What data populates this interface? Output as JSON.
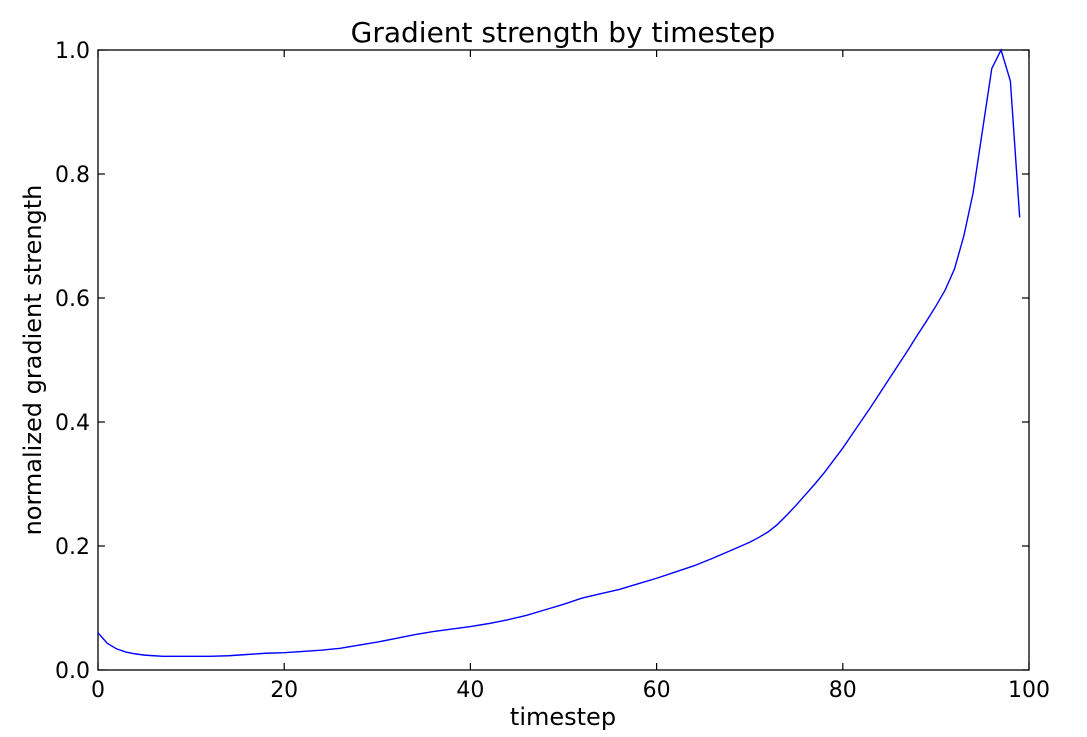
{
  "chart_data": {
    "type": "line",
    "title": "Gradient strength by timestep",
    "xlabel": "timestep",
    "ylabel": "normalized gradient strength",
    "xlim": [
      0,
      100
    ],
    "ylim": [
      0.0,
      1.0
    ],
    "x_ticks": [
      "0",
      "20",
      "40",
      "60",
      "80",
      "100"
    ],
    "y_ticks": [
      "0.0",
      "0.2",
      "0.4",
      "0.6",
      "0.8",
      "1.0"
    ],
    "grid": false,
    "legend": "none",
    "series": [
      {
        "color": "#0000ff",
        "x": [
          0,
          1,
          2,
          3,
          4,
          5,
          6,
          7,
          8,
          9,
          10,
          12,
          14,
          16,
          18,
          20,
          22,
          24,
          26,
          28,
          30,
          32,
          34,
          36,
          38,
          40,
          42,
          44,
          46,
          48,
          50,
          52,
          54,
          56,
          58,
          60,
          62,
          64,
          66,
          68,
          70,
          71,
          72,
          73,
          74,
          75,
          76,
          77,
          78,
          79,
          80,
          81,
          82,
          83,
          84,
          85,
          86,
          87,
          88,
          89,
          90,
          91,
          92,
          93,
          94,
          95,
          96,
          97,
          98,
          99
        ],
        "y": [
          0.06,
          0.043,
          0.034,
          0.029,
          0.026,
          0.024,
          0.023,
          0.022,
          0.022,
          0.022,
          0.022,
          0.022,
          0.023,
          0.025,
          0.027,
          0.028,
          0.03,
          0.032,
          0.035,
          0.04,
          0.045,
          0.051,
          0.057,
          0.062,
          0.066,
          0.07,
          0.075,
          0.081,
          0.088,
          0.097,
          0.106,
          0.116,
          0.123,
          0.13,
          0.139,
          0.148,
          0.158,
          0.168,
          0.18,
          0.193,
          0.206,
          0.214,
          0.223,
          0.235,
          0.25,
          0.266,
          0.283,
          0.3,
          0.318,
          0.338,
          0.358,
          0.38,
          0.402,
          0.424,
          0.447,
          0.47,
          0.493,
          0.516,
          0.54,
          0.563,
          0.587,
          0.613,
          0.647,
          0.7,
          0.77,
          0.87,
          0.97,
          1.0,
          0.95,
          0.73
        ]
      }
    ]
  }
}
